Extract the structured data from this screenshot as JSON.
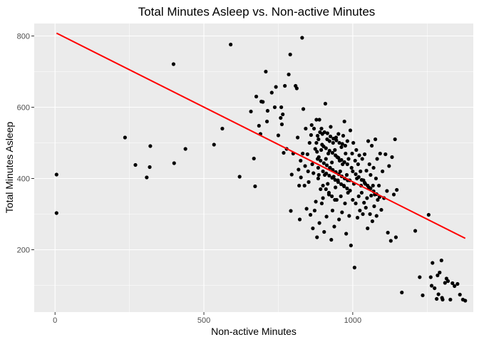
{
  "chart_data": {
    "type": "scatter",
    "title": "Total Minutes Asleep vs. Non-active Minutes",
    "xlabel": "Non-active Minutes",
    "ylabel": "Total Minutes Asleep",
    "xlim": [
      -70,
      1405
    ],
    "ylim": [
      25,
      835
    ],
    "xticks": [
      0,
      500,
      1000
    ],
    "yticks": [
      200,
      400,
      600,
      800
    ],
    "xtick_labels": [
      "0",
      "500",
      "1000"
    ],
    "ytick_labels": [
      "200",
      "400",
      "600",
      "800"
    ],
    "grid": true,
    "panel_background": "#ebebeb",
    "grid_color": "#ffffff",
    "point_color": "#000000",
    "trend_line": {
      "color": "#ff0000",
      "x": [
        5,
        1378
      ],
      "y": [
        808,
        232
      ]
    },
    "points": [
      [
        5,
        303
      ],
      [
        5,
        411
      ],
      [
        235,
        515
      ],
      [
        270,
        438
      ],
      [
        308,
        403
      ],
      [
        318,
        432
      ],
      [
        320,
        491
      ],
      [
        398,
        721
      ],
      [
        400,
        443
      ],
      [
        438,
        483
      ],
      [
        534,
        495
      ],
      [
        562,
        540
      ],
      [
        590,
        776
      ],
      [
        620,
        405
      ],
      [
        658,
        588
      ],
      [
        668,
        456
      ],
      [
        672,
        378
      ],
      [
        676,
        630
      ],
      [
        685,
        548
      ],
      [
        690,
        525
      ],
      [
        693,
        616
      ],
      [
        698,
        615
      ],
      [
        708,
        700
      ],
      [
        712,
        560
      ],
      [
        714,
        590
      ],
      [
        728,
        641
      ],
      [
        738,
        600
      ],
      [
        742,
        657
      ],
      [
        750,
        521
      ],
      [
        758,
        570
      ],
      [
        760,
        600
      ],
      [
        762,
        552
      ],
      [
        765,
        580
      ],
      [
        768,
        472
      ],
      [
        772,
        660
      ],
      [
        778,
        483
      ],
      [
        785,
        692
      ],
      [
        790,
        748
      ],
      [
        792,
        309
      ],
      [
        795,
        411
      ],
      [
        800,
        470
      ],
      [
        808,
        660
      ],
      [
        812,
        653
      ],
      [
        815,
        515
      ],
      [
        818,
        425
      ],
      [
        820,
        380
      ],
      [
        822,
        285
      ],
      [
        825,
        450
      ],
      [
        826,
        403
      ],
      [
        830,
        795
      ],
      [
        832,
        470
      ],
      [
        834,
        595
      ],
      [
        838,
        380
      ],
      [
        840,
        435
      ],
      [
        842,
        540
      ],
      [
        845,
        315
      ],
      [
        848,
        468
      ],
      [
        850,
        420
      ],
      [
        852,
        390
      ],
      [
        855,
        500
      ],
      [
        858,
        298
      ],
      [
        860,
        522
      ],
      [
        862,
        550
      ],
      [
        864,
        440
      ],
      [
        866,
        260
      ],
      [
        868,
        415
      ],
      [
        870,
        540
      ],
      [
        872,
        310
      ],
      [
        874,
        483
      ],
      [
        876,
        335
      ],
      [
        878,
        565
      ],
      [
        880,
        235
      ],
      [
        882,
        520
      ],
      [
        884,
        400
      ],
      [
        886,
        460
      ],
      [
        888,
        275
      ],
      [
        890,
        530
      ],
      [
        892,
        370
      ],
      [
        894,
        480
      ],
      [
        896,
        330
      ],
      [
        898,
        525
      ],
      [
        900,
        345
      ],
      [
        902,
        490
      ],
      [
        904,
        250
      ],
      [
        906,
        410
      ],
      [
        908,
        610
      ],
      [
        910,
        455
      ],
      [
        912,
        293
      ],
      [
        914,
        510
      ],
      [
        916,
        385
      ],
      [
        918,
        470
      ],
      [
        920,
        355
      ],
      [
        922,
        505
      ],
      [
        924,
        430
      ],
      [
        926,
        545
      ],
      [
        928,
        228
      ],
      [
        930,
        445
      ],
      [
        932,
        310
      ],
      [
        934,
        500
      ],
      [
        936,
        405
      ],
      [
        938,
        265
      ],
      [
        940,
        480
      ],
      [
        942,
        375
      ],
      [
        944,
        515
      ],
      [
        946,
        340
      ],
      [
        948,
        460
      ],
      [
        950,
        395
      ],
      [
        952,
        525
      ],
      [
        954,
        285
      ],
      [
        956,
        450
      ],
      [
        958,
        420
      ],
      [
        960,
        350
      ],
      [
        962,
        488
      ],
      [
        964,
        305
      ],
      [
        966,
        440
      ],
      [
        968,
        520
      ],
      [
        970,
        380
      ],
      [
        972,
        560
      ],
      [
        974,
        330
      ],
      [
        976,
        470
      ],
      [
        978,
        245
      ],
      [
        980,
        410
      ],
      [
        982,
        505
      ],
      [
        984,
        360
      ],
      [
        986,
        455
      ],
      [
        988,
        295
      ],
      [
        990,
        395
      ],
      [
        992,
        535
      ],
      [
        994,
        212
      ],
      [
        996,
        430
      ],
      [
        998,
        470
      ],
      [
        1000,
        340
      ],
      [
        1002,
        500
      ],
      [
        1004,
        385
      ],
      [
        1006,
        150
      ],
      [
        1008,
        450
      ],
      [
        1010,
        330
      ],
      [
        1012,
        480
      ],
      [
        1014,
        400
      ],
      [
        1016,
        290
      ],
      [
        1018,
        440
      ],
      [
        1020,
        350
      ],
      [
        1022,
        465
      ],
      [
        1024,
        310
      ],
      [
        1026,
        420
      ],
      [
        1028,
        380
      ],
      [
        1030,
        360
      ],
      [
        1032,
        455
      ],
      [
        1034,
        300
      ],
      [
        1036,
        395
      ],
      [
        1038,
        332
      ],
      [
        1040,
        468
      ],
      [
        1042,
        385
      ],
      [
        1044,
        318
      ],
      [
        1046,
        422
      ],
      [
        1048,
        345
      ],
      [
        1050,
        260
      ],
      [
        1052,
        505
      ],
      [
        1054,
        375
      ],
      [
        1056,
        440
      ],
      [
        1058,
        300
      ],
      [
        1060,
        410
      ],
      [
        1062,
        352
      ],
      [
        1064,
        492
      ],
      [
        1066,
        280
      ],
      [
        1068,
        380
      ],
      [
        1070,
        430
      ],
      [
        1072,
        322
      ],
      [
        1074,
        355
      ],
      [
        1076,
        510
      ],
      [
        1078,
        400
      ],
      [
        1080,
        295
      ],
      [
        1082,
        455
      ],
      [
        1084,
        340
      ],
      [
        1088,
        380
      ],
      [
        1092,
        470
      ],
      [
        1096,
        312
      ],
      [
        1100,
        420
      ],
      [
        1105,
        345
      ],
      [
        1110,
        468
      ],
      [
        1115,
        365
      ],
      [
        1118,
        248
      ],
      [
        1122,
        435
      ],
      [
        1128,
        225
      ],
      [
        1132,
        460
      ],
      [
        1138,
        355
      ],
      [
        1142,
        510
      ],
      [
        1145,
        235
      ],
      [
        1148,
        368
      ],
      [
        1165,
        80
      ],
      [
        1210,
        253
      ],
      [
        1225,
        123
      ],
      [
        1235,
        72
      ],
      [
        1255,
        298
      ],
      [
        1262,
        123
      ],
      [
        1265,
        99
      ],
      [
        1268,
        163
      ],
      [
        1275,
        92
      ],
      [
        1282,
        62
      ],
      [
        1285,
        128
      ],
      [
        1288,
        75
      ],
      [
        1292,
        136
      ],
      [
        1298,
        170
      ],
      [
        1300,
        65
      ],
      [
        1302,
        60
      ],
      [
        1310,
        107
      ],
      [
        1315,
        119
      ],
      [
        1320,
        112
      ],
      [
        1328,
        60
      ],
      [
        1335,
        106
      ],
      [
        1342,
        98
      ],
      [
        1352,
        104
      ],
      [
        1360,
        74
      ],
      [
        1370,
        60
      ],
      [
        1378,
        57
      ],
      [
        888,
        565
      ],
      [
        895,
        540
      ],
      [
        905,
        530
      ],
      [
        915,
        527
      ],
      [
        925,
        518
      ],
      [
        935,
        512
      ],
      [
        945,
        507
      ],
      [
        955,
        500
      ],
      [
        965,
        497
      ],
      [
        975,
        492
      ],
      [
        885,
        510
      ],
      [
        897,
        495
      ],
      [
        910,
        485
      ],
      [
        922,
        478
      ],
      [
        932,
        472
      ],
      [
        942,
        465
      ],
      [
        952,
        458
      ],
      [
        962,
        452
      ],
      [
        972,
        446
      ],
      [
        982,
        440
      ],
      [
        892,
        450
      ],
      [
        903,
        443
      ],
      [
        913,
        437
      ],
      [
        923,
        430
      ],
      [
        933,
        424
      ],
      [
        943,
        418
      ],
      [
        953,
        412
      ],
      [
        963,
        406
      ],
      [
        973,
        400
      ],
      [
        983,
        395
      ],
      [
        900,
        420
      ],
      [
        911,
        414
      ],
      [
        921,
        408
      ],
      [
        931,
        402
      ],
      [
        941,
        396
      ],
      [
        951,
        390
      ],
      [
        961,
        384
      ],
      [
        971,
        378
      ],
      [
        981,
        372
      ],
      [
        991,
        366
      ],
      [
        878,
        500
      ],
      [
        880,
        475
      ],
      [
        882,
        455
      ],
      [
        884,
        430
      ],
      [
        886,
        410
      ],
      [
        900,
        380
      ],
      [
        910,
        370
      ],
      [
        920,
        360
      ],
      [
        930,
        350
      ],
      [
        940,
        340
      ],
      [
        1000,
        420
      ],
      [
        1010,
        412
      ],
      [
        1020,
        404
      ],
      [
        1030,
        396
      ],
      [
        1040,
        388
      ],
      [
        1050,
        380
      ],
      [
        1060,
        372
      ],
      [
        1070,
        364
      ],
      [
        1080,
        356
      ],
      [
        1090,
        348
      ]
    ]
  }
}
